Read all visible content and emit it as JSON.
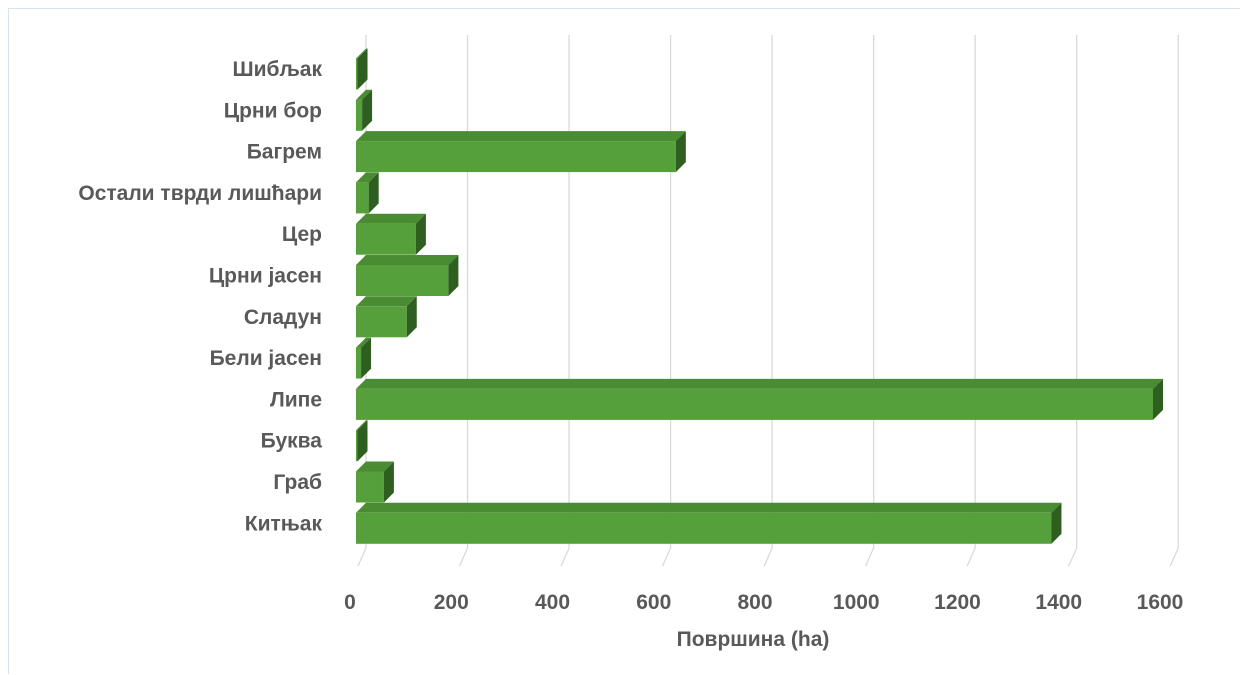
{
  "chart_data": {
    "type": "bar",
    "orientation": "horizontal",
    "style": "3d",
    "categories": [
      "Шибљак",
      "Црни бор",
      "Багрем",
      "Остали тврди лишћари",
      "Цер",
      "Црни јасен",
      "Сладун",
      "Бели јасен",
      "Липе",
      "Буква",
      "Граб",
      "Китњак"
    ],
    "values": [
      3,
      12,
      630,
      25,
      118,
      182,
      100,
      10,
      1570,
      2,
      55,
      1370
    ],
    "xlabel": "Површина (ha)",
    "ylabel": "",
    "xlim": [
      0,
      1600
    ],
    "x_ticks": [
      "0",
      "200",
      "400",
      "600",
      "800",
      "1000",
      "1200",
      "1400",
      "1600"
    ],
    "grid": true,
    "legend": "none",
    "colors": {
      "bar_front": "#55a03a",
      "bar_top": "#4a8c32",
      "bar_side": "#2f5f20",
      "grid": "#d9d9d9",
      "text": "#595959"
    }
  }
}
